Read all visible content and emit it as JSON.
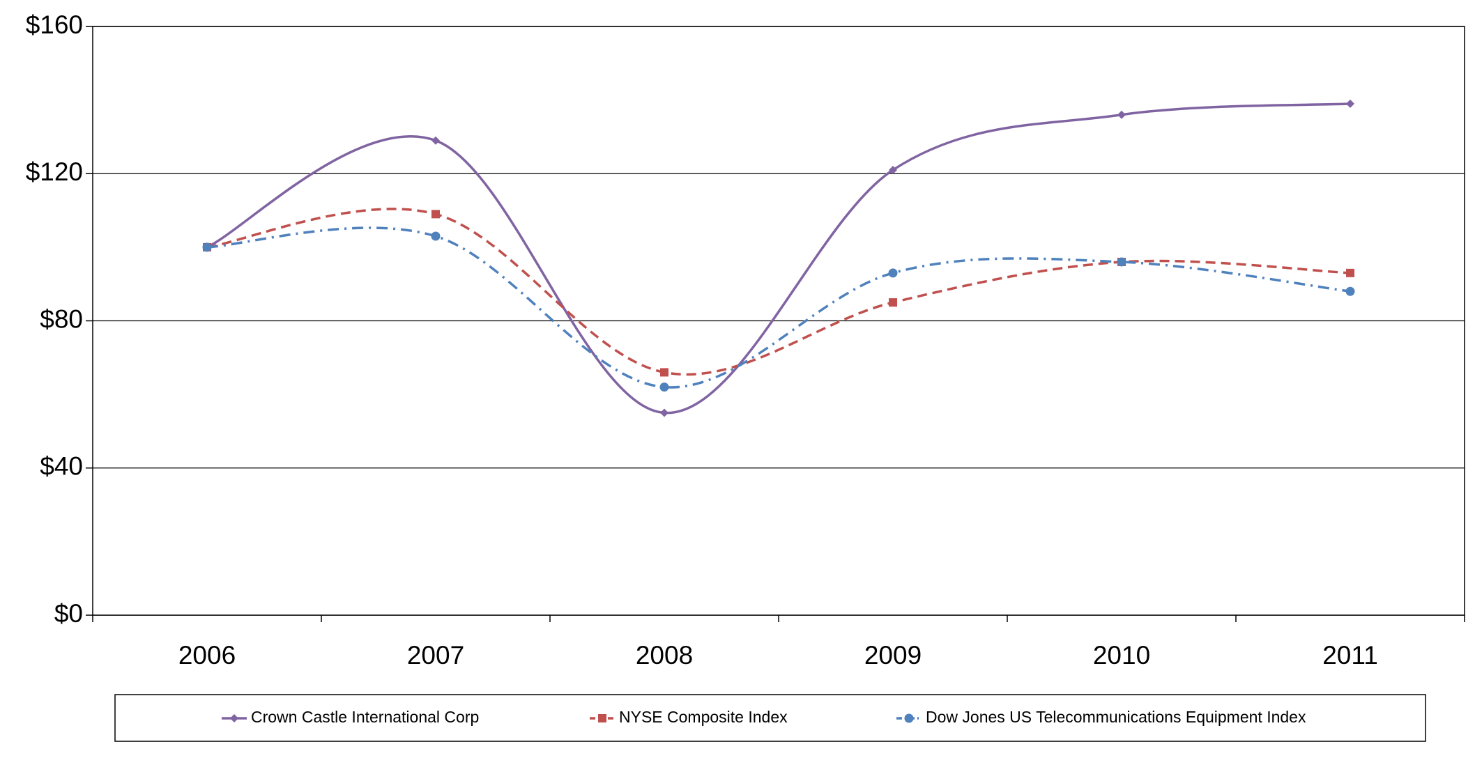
{
  "chart_data": {
    "type": "line",
    "categories": [
      "2006",
      "2007",
      "2008",
      "2009",
      "2010",
      "2011"
    ],
    "series": [
      {
        "name": "Crown Castle International Corp",
        "color": "#8064a2",
        "dash": "solid",
        "marker": "diamond",
        "values": [
          100,
          129,
          55,
          121,
          136,
          139
        ]
      },
      {
        "name": "NYSE Composite Index",
        "color": "#c0504d",
        "dash": "dashed",
        "marker": "square",
        "values": [
          100,
          109,
          66,
          85,
          96,
          93
        ]
      },
      {
        "name": "Dow Jones US Telecommunications Equipment Index",
        "color": "#4f81bd",
        "dash": "dash-dot",
        "marker": "circle",
        "values": [
          100,
          103,
          62,
          93,
          96,
          88
        ]
      }
    ],
    "ylim": [
      0,
      160
    ],
    "yticks": [
      {
        "value": 0,
        "label": "$0"
      },
      {
        "value": 40,
        "label": "$40"
      },
      {
        "value": 80,
        "label": "$80"
      },
      {
        "value": 120,
        "label": "$120"
      },
      {
        "value": 160,
        "label": "$160"
      }
    ],
    "grid": true,
    "smooth": true,
    "legend": "bottom"
  }
}
